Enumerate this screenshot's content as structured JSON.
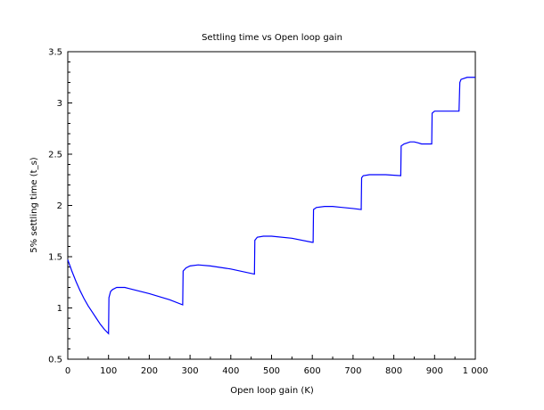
{
  "chart_data": {
    "type": "line",
    "title": "Settling time vs Open loop gain",
    "xlabel": "Open loop gain (K)",
    "ylabel": "5% settling time (t_s)",
    "xlim": [
      0,
      1000
    ],
    "ylim": [
      0.5,
      3.5
    ],
    "x_ticks": [
      0,
      100,
      200,
      300,
      400,
      500,
      600,
      700,
      800,
      900,
      1000
    ],
    "x_tick_labels": [
      "0",
      "100",
      "200",
      "300",
      "400",
      "500",
      "600",
      "700",
      "800",
      "900",
      "1 000"
    ],
    "y_ticks": [
      0.5,
      1,
      1.5,
      2,
      2.5,
      3,
      3.5
    ],
    "y_tick_labels": [
      "0.5",
      "1",
      "1.5",
      "2",
      "2.5",
      "3",
      "3.5"
    ],
    "grid": false,
    "line_color": "#0000ff",
    "series": [
      {
        "x": [
          0,
          10,
          20,
          30,
          40,
          50,
          60,
          70,
          80,
          90,
          100,
          101,
          105,
          110,
          120,
          130,
          140,
          150,
          200,
          250,
          282,
          283,
          290,
          300,
          320,
          350,
          400,
          458,
          459,
          465,
          480,
          500,
          550,
          600,
          602,
          603,
          610,
          630,
          650,
          700,
          720,
          721,
          725,
          740,
          760,
          780,
          817,
          818,
          825,
          840,
          850,
          860,
          868,
          893,
          894,
          900,
          920,
          940,
          960,
          962,
          965,
          980,
          1000
        ],
        "y": [
          1.47,
          1.36,
          1.26,
          1.17,
          1.09,
          1.02,
          0.96,
          0.9,
          0.84,
          0.79,
          0.75,
          1.1,
          1.16,
          1.18,
          1.2,
          1.2,
          1.2,
          1.19,
          1.14,
          1.08,
          1.03,
          1.36,
          1.39,
          1.41,
          1.42,
          1.41,
          1.38,
          1.33,
          1.66,
          1.69,
          1.7,
          1.7,
          1.68,
          1.64,
          1.64,
          1.96,
          1.98,
          1.99,
          1.99,
          1.97,
          1.96,
          2.27,
          2.29,
          2.3,
          2.3,
          2.3,
          2.29,
          2.58,
          2.6,
          2.62,
          2.62,
          2.61,
          2.6,
          2.6,
          2.9,
          2.92,
          2.92,
          2.92,
          2.92,
          3.2,
          3.23,
          3.25,
          3.25
        ]
      }
    ]
  }
}
